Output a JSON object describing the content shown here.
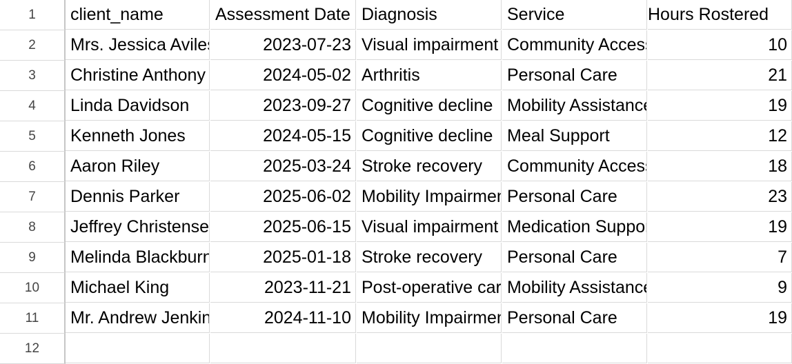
{
  "headers": [
    "client_name",
    "Assessment Date",
    "Diagnosis",
    "Service",
    "Hours Rostered"
  ],
  "row_numbers": [
    "1",
    "2",
    "3",
    "4",
    "5",
    "6",
    "7",
    "8",
    "9",
    "10",
    "11",
    "12"
  ],
  "rows": [
    [
      "Mrs. Jessica Aviles",
      "2023-07-23",
      "Visual impairment",
      "Community Access",
      "10"
    ],
    [
      "Christine Anthony",
      "2024-05-02",
      "Arthritis",
      "Personal Care",
      "21"
    ],
    [
      "Linda Davidson",
      "2023-09-27",
      "Cognitive decline",
      "Mobility Assistance",
      "19"
    ],
    [
      "Kenneth Jones",
      "2024-05-15",
      "Cognitive decline",
      "Meal Support",
      "12"
    ],
    [
      "Aaron Riley",
      "2025-03-24",
      "Stroke recovery",
      "Community Access",
      "18"
    ],
    [
      "Dennis Parker",
      "2025-06-02",
      "Mobility Impairment",
      "Personal Care",
      "23"
    ],
    [
      "Jeffrey Christensen",
      "2025-06-15",
      "Visual impairment",
      "Medication Support",
      "19"
    ],
    [
      "Melinda Blackburn",
      "2025-01-18",
      "Stroke recovery",
      "Personal Care",
      "7"
    ],
    [
      "Michael King",
      "2023-11-21",
      "Post-operative care",
      "Mobility Assistance",
      "9"
    ],
    [
      "Mr. Andrew Jenkins",
      "2024-11-10",
      "Mobility Impairment",
      "Personal Care",
      "19"
    ]
  ]
}
